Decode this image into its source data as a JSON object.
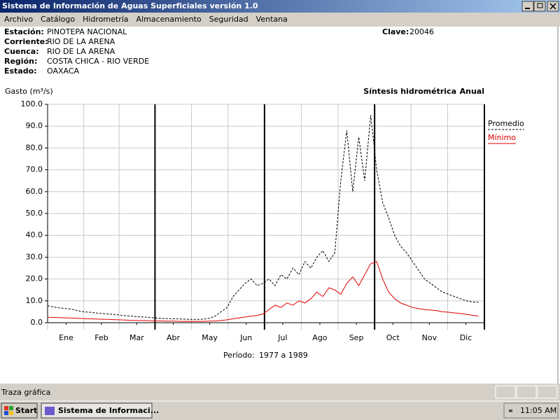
{
  "window": {
    "title": "Sistema de Información de Aguas Superficiales  versión 1.0"
  },
  "menu": [
    "Archivo",
    "Catálogo",
    "Hidrometría",
    "Almacenamiento",
    "Seguridad",
    "Ventana"
  ],
  "station": {
    "fields": [
      {
        "label": "Estación:",
        "value": "PINOTEPA NACIONAL"
      },
      {
        "label": "Corriente:",
        "value": "RIO DE LA ARENA"
      },
      {
        "label": "Cuenca:",
        "value": "RIO DE LA ARENA"
      },
      {
        "label": "Región:",
        "value": "COSTA CHICA - RIO VERDE"
      },
      {
        "label": "Estado:",
        "value": "OAXACA"
      }
    ],
    "clave_label": "Clave:",
    "clave": "20046"
  },
  "chart_data": {
    "type": "line",
    "title": "Síntesis hidrométrica",
    "subtitle": "Anual",
    "y_label": "Gasto (m³/s)",
    "period_label": "Período:",
    "period": "1977 a 1989",
    "x": [
      0,
      5,
      10,
      15,
      20,
      25,
      30,
      35,
      40,
      45,
      50,
      55,
      60,
      65,
      70,
      75,
      80,
      85,
      90,
      95,
      100,
      105,
      110,
      115,
      120,
      125,
      130,
      135,
      140,
      145,
      150,
      155,
      160,
      165,
      170,
      175,
      180,
      185,
      190,
      195,
      200,
      205,
      210,
      215,
      220,
      225,
      230,
      235,
      240,
      245,
      250,
      255,
      260,
      265,
      270,
      275,
      280,
      285,
      290,
      295,
      300,
      305,
      310,
      315,
      320,
      325,
      330,
      335,
      340,
      345,
      350,
      355,
      360
    ],
    "xlim": [
      0,
      365
    ],
    "xticks": [
      {
        "value": 15.5,
        "label": "Ene"
      },
      {
        "value": 45,
        "label": "Feb"
      },
      {
        "value": 74.5,
        "label": "Mar"
      },
      {
        "value": 105,
        "label": "Abr"
      },
      {
        "value": 135.5,
        "label": "May"
      },
      {
        "value": 166,
        "label": "Jun"
      },
      {
        "value": 196.5,
        "label": "Jul"
      },
      {
        "value": 227.5,
        "label": "Ago"
      },
      {
        "value": 258,
        "label": "Sep"
      },
      {
        "value": 288.5,
        "label": "Oct"
      },
      {
        "value": 319,
        "label": "Nov"
      },
      {
        "value": 349.5,
        "label": "Dic"
      }
    ],
    "ylim": [
      0,
      100
    ],
    "yticks": [
      {
        "value": 0,
        "label": "0.0"
      },
      {
        "value": 10,
        "label": "10.0"
      },
      {
        "value": 20,
        "label": "20.0"
      },
      {
        "value": 30,
        "label": "30.0"
      },
      {
        "value": 40,
        "label": "40.0"
      },
      {
        "value": 50,
        "label": "50.0"
      },
      {
        "value": 60,
        "label": "60.0"
      },
      {
        "value": 70,
        "label": "70.0"
      },
      {
        "value": 80,
        "label": "80.0"
      },
      {
        "value": 90,
        "label": "90.0"
      },
      {
        "value": 100,
        "label": "100.0"
      }
    ],
    "grid": true,
    "legend": "right",
    "series": [
      {
        "name": "Promedio",
        "color": "#000000",
        "line_style": "dashed",
        "values": [
          7.8,
          7.2,
          6.8,
          6.5,
          6.2,
          5.5,
          5.0,
          4.8,
          4.5,
          4.2,
          4.0,
          3.8,
          3.5,
          3.2,
          3.0,
          2.8,
          2.6,
          2.4,
          2.2,
          2.0,
          1.9,
          1.8,
          1.7,
          1.6,
          1.5,
          1.5,
          1.6,
          2.0,
          3.0,
          5.0,
          7.0,
          12,
          15,
          18,
          20,
          17,
          18,
          20,
          17,
          22,
          20,
          25,
          22,
          28,
          25,
          30,
          33,
          28,
          32,
          65,
          88,
          60,
          85,
          65,
          95,
          70,
          55,
          48,
          40,
          35,
          32,
          28,
          24,
          20,
          18,
          16,
          14,
          13,
          12,
          11,
          10,
          9.5,
          9.3
        ]
      },
      {
        "name": "Mínimo",
        "color": "#e00000",
        "line_style": "solid",
        "values": [
          2.5,
          2.4,
          2.3,
          2.2,
          2.1,
          2.0,
          1.9,
          1.8,
          1.7,
          1.6,
          1.5,
          1.4,
          1.3,
          1.2,
          1.1,
          1.0,
          1.0,
          0.9,
          0.8,
          0.8,
          0.7,
          0.7,
          0.6,
          0.6,
          0.6,
          0.6,
          0.6,
          0.7,
          0.8,
          1.0,
          1.3,
          1.8,
          2.2,
          2.6,
          3.0,
          3.3,
          4.0,
          6,
          8,
          7,
          9,
          8,
          10,
          9,
          11,
          14,
          12,
          16,
          15,
          13,
          18,
          21,
          17,
          22,
          27,
          28,
          20,
          14,
          11,
          9,
          8,
          7,
          6.5,
          6,
          5.8,
          5.5,
          5,
          4.8,
          4.5,
          4.2,
          3.8,
          3.4,
          3.0
        ]
      }
    ]
  },
  "status": {
    "text": "Traza gráfica"
  },
  "taskbar": {
    "start": "Start",
    "task": "Sistema de Informaci...",
    "chevron": "«",
    "clock": "11:05 AM"
  }
}
